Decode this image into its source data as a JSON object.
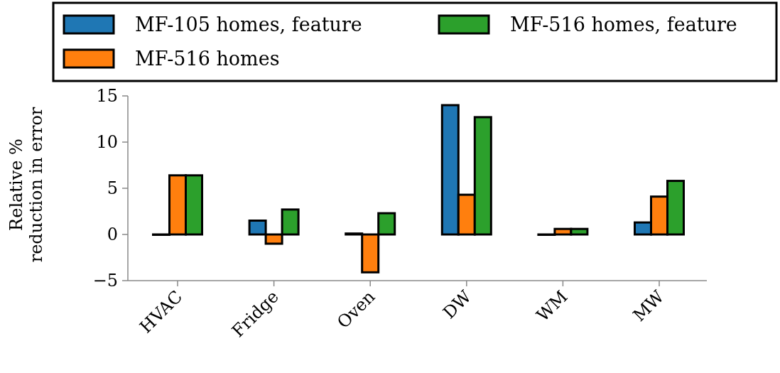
{
  "chart_data": {
    "type": "bar",
    "ylabel": "Relative %\nreduction in error",
    "categories": [
      "HVAC",
      "Fridge",
      "Oven",
      "DW",
      "WM",
      "MW"
    ],
    "series": [
      {
        "name": "MF-105 homes, feature",
        "color": "#1f77b4",
        "values": [
          0,
          1.5,
          0.1,
          14.0,
          0,
          1.3
        ]
      },
      {
        "name": "MF-516 homes",
        "color": "#ff7f0e",
        "values": [
          6.4,
          -1.0,
          -4.1,
          4.3,
          0.6,
          4.1
        ]
      },
      {
        "name": "MF-516 homes, feature",
        "color": "#2ca02c",
        "values": [
          6.4,
          2.7,
          2.3,
          12.7,
          0.6,
          5.8
        ]
      }
    ],
    "ylim": [
      -5,
      15
    ],
    "yticks": [
      -5,
      0,
      5,
      10,
      15
    ],
    "grid": false,
    "legend": "top"
  }
}
